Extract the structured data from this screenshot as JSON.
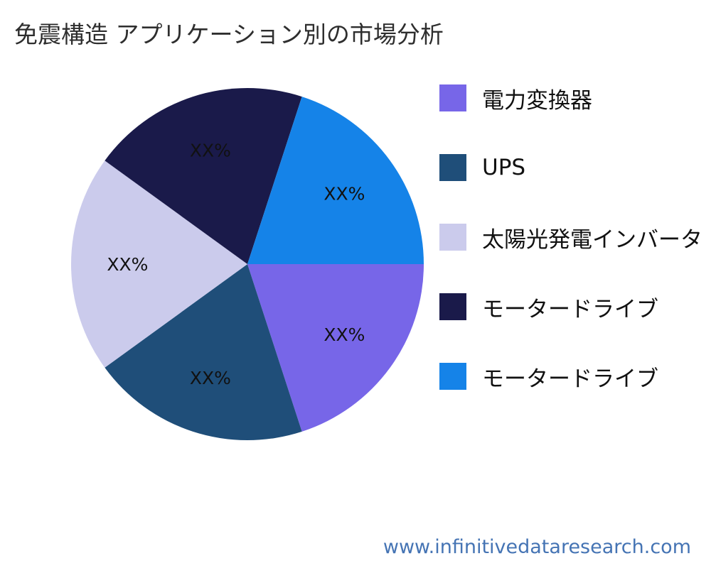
{
  "chart_data": {
    "type": "pie",
    "title": "免震構造 アプリケーション別の市場分析",
    "legend_position": "right",
    "start_angle": 0,
    "direction": "clockwise",
    "slices": [
      {
        "label": "電力変換器",
        "value": 20,
        "display": "XX%",
        "color": "#7766E8"
      },
      {
        "label": "UPS",
        "value": 20,
        "display": "XX%",
        "color": "#1F4E79"
      },
      {
        "label": "太陽光発電インバータ",
        "value": 20,
        "display": "XX%",
        "color": "#CBCBEC"
      },
      {
        "label": "モータードライブ",
        "value": 20,
        "display": "XX%",
        "color": "#1A1A4A"
      },
      {
        "label": "モータードライブ",
        "value": 20,
        "display": "XX%",
        "color": "#1583E8"
      }
    ]
  },
  "footer": {
    "url": "www.infinitivedataresearch.com"
  }
}
